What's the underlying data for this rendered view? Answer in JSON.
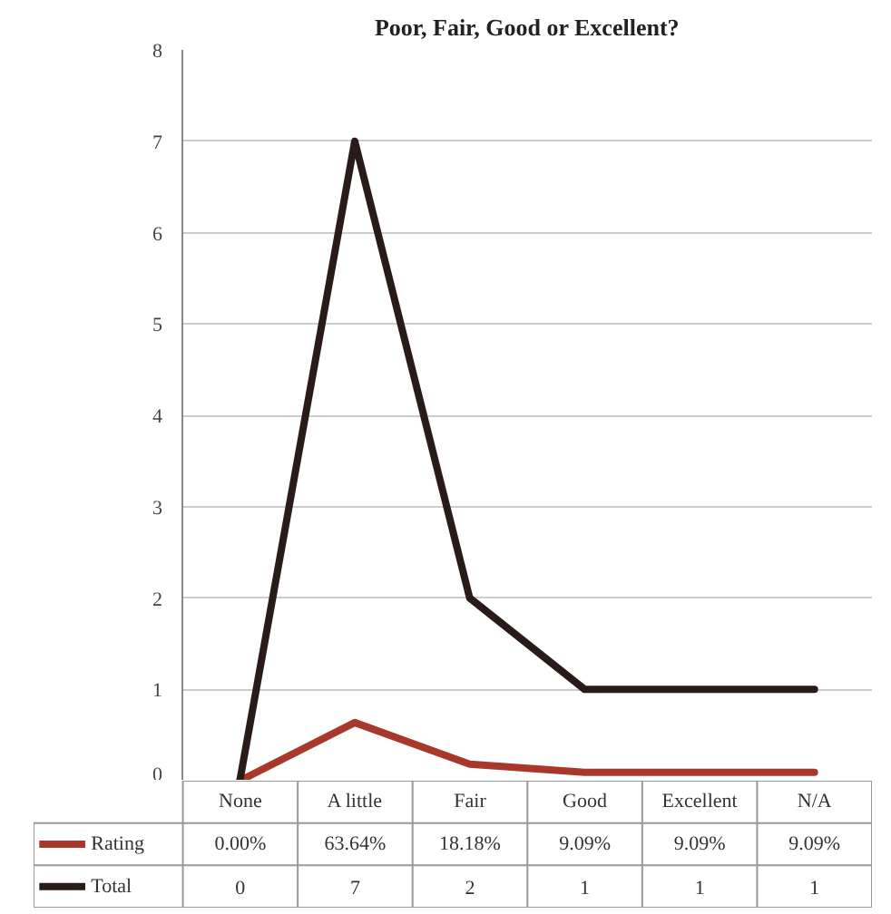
{
  "chart_data": {
    "type": "line",
    "title": "Poor, Fair, Good or Excellent?",
    "categories": [
      "None",
      "A little",
      "Fair",
      "Good",
      "Excellent",
      "N/A"
    ],
    "series": [
      {
        "name": "Rating",
        "color": "#a8372c",
        "values": [
          0,
          0.6364,
          0.1818,
          0.0909,
          0.0909,
          0.0909
        ],
        "value_labels": [
          "0.00%",
          "63.64%",
          "18.18%",
          "9.09%",
          "9.09%",
          "9.09%"
        ]
      },
      {
        "name": "Total",
        "color": "#2a1b1b",
        "values": [
          0,
          7,
          2,
          1,
          1,
          1
        ],
        "value_labels": [
          "0",
          "7",
          "2",
          "1",
          "1",
          "1"
        ]
      }
    ],
    "ylim": [
      0,
      8
    ],
    "yticks": [
      0,
      1,
      2,
      3,
      4,
      5,
      6,
      7,
      8
    ],
    "grid": "y",
    "marker": "none",
    "line_style": "solid",
    "legend": "bottom",
    "data_labels": true
  }
}
